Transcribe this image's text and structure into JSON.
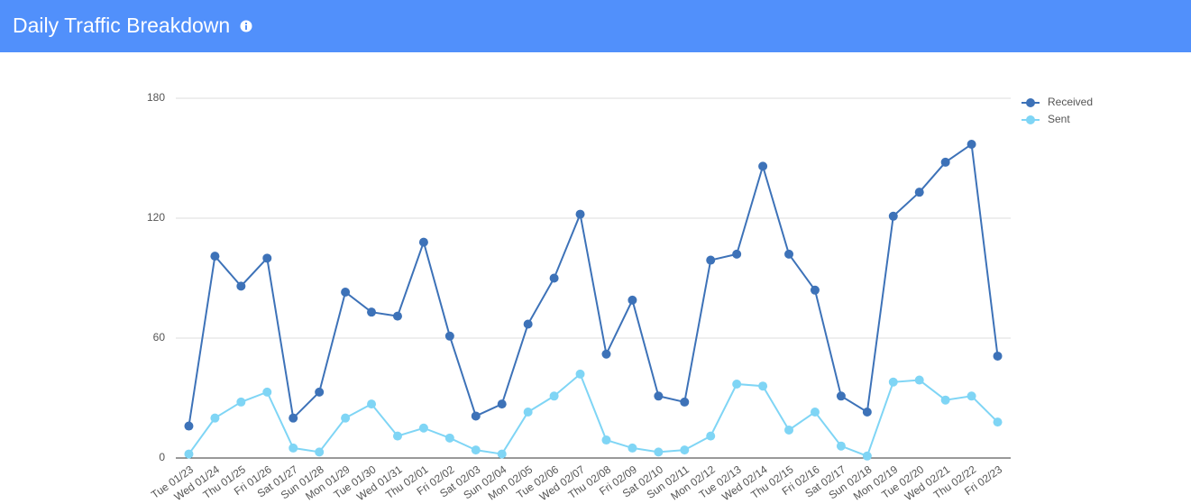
{
  "chart_data": {
    "type": "line",
    "title": "Daily Traffic Breakdown",
    "categories": [
      "Tue 01/23",
      "Wed 01/24",
      "Thu 01/25",
      "Fri 01/26",
      "Sat 01/27",
      "Sun 01/28",
      "Mon 01/29",
      "Tue 01/30",
      "Wed 01/31",
      "Thu 02/01",
      "Fri 02/02",
      "Sat 02/03",
      "Sun 02/04",
      "Mon 02/05",
      "Tue 02/06",
      "Wed 02/07",
      "Thu 02/08",
      "Fri 02/09",
      "Sat 02/10",
      "Sun 02/11",
      "Mon 02/12",
      "Tue 02/13",
      "Wed 02/14",
      "Thu 02/15",
      "Fri 02/16",
      "Sat 02/17",
      "Sun 02/18",
      "Mon 02/19",
      "Tue 02/20",
      "Wed 02/21",
      "Thu 02/22",
      "Fri 02/23"
    ],
    "series": [
      {
        "name": "Received",
        "color": "#3d72b8",
        "values": [
          16,
          101,
          86,
          100,
          20,
          33,
          83,
          73,
          71,
          108,
          61,
          21,
          27,
          67,
          90,
          122,
          52,
          79,
          31,
          28,
          99,
          102,
          146,
          102,
          84,
          31,
          23,
          121,
          133,
          148,
          157,
          51
        ]
      },
      {
        "name": "Sent",
        "color": "#7fd5f5",
        "values": [
          2,
          20,
          28,
          33,
          5,
          3,
          20,
          27,
          11,
          15,
          10,
          4,
          2,
          23,
          31,
          42,
          9,
          5,
          3,
          4,
          11,
          37,
          36,
          14,
          23,
          6,
          1,
          38,
          39,
          29,
          31,
          18
        ]
      }
    ],
    "ylim": [
      0,
      180
    ],
    "yticks": [
      0,
      60,
      120,
      180
    ],
    "grid": true,
    "legend": "top-right"
  }
}
